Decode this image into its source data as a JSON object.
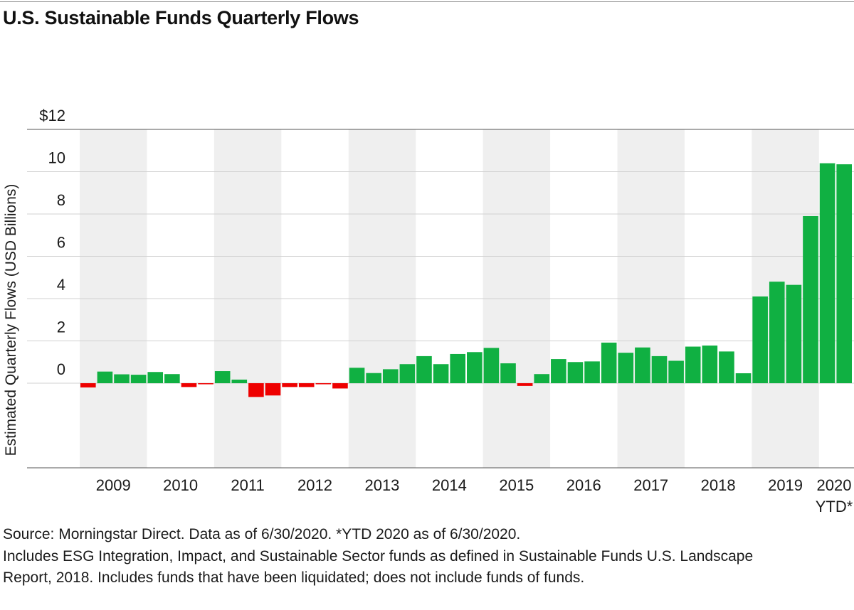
{
  "colors": {
    "positive": "#10b042",
    "negative": "#ee0000",
    "band": "#efefef",
    "grid": "#d0d0d0",
    "axis": "#555555"
  },
  "chart_data": {
    "type": "bar",
    "title": "U.S. Sustainable Funds Quarterly Flows",
    "ylabel": "Estimated Quarterly Flows (USD Billions)",
    "xlabel": "",
    "ylim": [
      -4,
      12
    ],
    "yticks": [
      {
        "value": 12,
        "label": "$12"
      },
      {
        "value": 10,
        "label": "10"
      },
      {
        "value": 8,
        "label": "8"
      },
      {
        "value": 6,
        "label": "6"
      },
      {
        "value": 4,
        "label": "4"
      },
      {
        "value": 2,
        "label": "2"
      },
      {
        "value": 0,
        "label": "0"
      }
    ],
    "years": [
      "2009",
      "2010",
      "2011",
      "2012",
      "2013",
      "2014",
      "2015",
      "2016",
      "2017",
      "2018",
      "2019",
      "2020"
    ],
    "ytd_note": "YTD*",
    "series": [
      {
        "name": "Quarterly Flows",
        "values": [
          -0.2,
          0.55,
          0.42,
          0.4,
          0.53,
          0.43,
          -0.18,
          -0.02,
          0.57,
          0.17,
          -0.65,
          -0.58,
          -0.18,
          -0.18,
          -0.05,
          -0.25,
          0.73,
          0.48,
          0.66,
          0.9,
          1.28,
          0.9,
          1.38,
          1.47,
          1.67,
          0.94,
          -0.13,
          0.43,
          1.14,
          1.0,
          1.03,
          1.92,
          1.44,
          1.69,
          1.28,
          1.06,
          1.73,
          1.78,
          1.5,
          0.47,
          4.1,
          4.8,
          4.65,
          7.9,
          10.4,
          10.35
        ]
      }
    ],
    "source": "Source: Morningstar Direct. Data as of 6/30/2020. *YTD 2020 as of 6/30/2020.",
    "note_line1": "Includes ESG Integration, Impact, and Sustainable Sector funds as defined in Sustainable Funds U.S. Landscape",
    "note_line2": "Report, 2018. Includes funds that have been liquidated; does not include funds of funds."
  }
}
